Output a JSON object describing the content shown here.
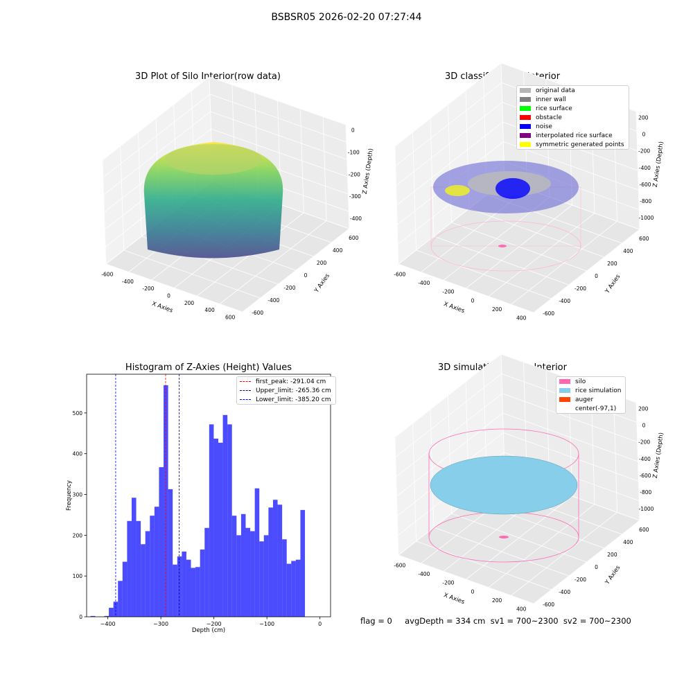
{
  "figure": {
    "title": "BSBSR05 2026-02-20 07:27:44",
    "footer": "flag = 0     avgDepth = 334 cm  sv1 = 700~2300  sv2 = 700~2300"
  },
  "panel1": {
    "title": "3D Plot of Silo Interior(row data)",
    "xlabel": "X Axies",
    "ylabel": "Y Axies",
    "zlabel": "Z Axies (Depth)",
    "xticks": [
      "-600",
      "-400",
      "-200",
      "0",
      "200",
      "400",
      "600"
    ],
    "yticks": [
      "-600",
      "-400",
      "-200",
      "0",
      "200",
      "400",
      "600"
    ],
    "zticks": [
      "0",
      "-100",
      "-200",
      "-300",
      "-400"
    ]
  },
  "panel2": {
    "title": "3D classify of Silo Interior",
    "xlabel": "X Axies",
    "ylabel": "Y Axies",
    "zlabel": "Z Axies (Depth)",
    "xticks": [
      "-600",
      "-400",
      "-200",
      "0",
      "200",
      "400"
    ],
    "yticks": [
      "-600",
      "-400",
      "-200",
      "0",
      "200",
      "400",
      "600"
    ],
    "zticks": [
      "200",
      "0",
      "-200",
      "-400",
      "-600",
      "-800",
      "-1000"
    ],
    "legend": [
      {
        "label": "original data",
        "color": "#b5b5b5"
      },
      {
        "label": "inner wall",
        "color": "#808080"
      },
      {
        "label": "rice surface",
        "color": "#00ff00"
      },
      {
        "label": "obstacle",
        "color": "#ff0000"
      },
      {
        "label": "noise",
        "color": "#0000ff"
      },
      {
        "label": "interpolated rice surface",
        "color": "#800080"
      },
      {
        "label": "symmetric generated points",
        "color": "#ffff00"
      }
    ]
  },
  "panel4": {
    "title": "3D simulation of Silo Interior",
    "xlabel": "X Axies",
    "ylabel": "Y Axies",
    "zlabel": "Z Axies (Depth)",
    "xticks": [
      "-600",
      "-400",
      "-200",
      "0",
      "200",
      "400"
    ],
    "yticks": [
      "-600",
      "-400",
      "-200",
      "0",
      "200",
      "400",
      "600"
    ],
    "zticks": [
      "200",
      "0",
      "-200",
      "-400",
      "-600",
      "-800",
      "-1000"
    ],
    "legend": [
      {
        "label": "silo",
        "color": "#ff69b4"
      },
      {
        "label": "rice simulation",
        "color": "#87ceeb"
      },
      {
        "label": "auger",
        "color": "#ff4500"
      },
      {
        "label": "center(-97,1)",
        "color": ""
      }
    ]
  },
  "chart_data": [
    {
      "type": "bar",
      "title": "Histogram of Z-Axies (Height) Values",
      "xlabel": "Depth (cm)",
      "ylabel": "Frequency",
      "xlim": [
        -440,
        20
      ],
      "ylim": [
        0,
        595
      ],
      "xticks": [
        -400,
        -300,
        -200,
        -100,
        0
      ],
      "yticks": [
        0,
        100,
        200,
        300,
        400,
        500
      ],
      "bin_start": -432.5,
      "bin_width": 8.6,
      "values": [
        2,
        0,
        0,
        2,
        22,
        37,
        88,
        135,
        235,
        292,
        235,
        178,
        210,
        248,
        270,
        367,
        568,
        313,
        128,
        148,
        160,
        140,
        120,
        122,
        165,
        218,
        472,
        437,
        427,
        495,
        472,
        248,
        200,
        252,
        218,
        210,
        315,
        185,
        200,
        268,
        287,
        275,
        190,
        130,
        137,
        140,
        262
      ],
      "bar_color": "#0000ff",
      "bar_alpha": 0.7,
      "vlines": [
        {
          "label": "first_peak: -291.04 cm",
          "x": -291.04,
          "color": "#ff0000"
        },
        {
          "label": "Upper_limit: -265.36 cm",
          "x": -265.36,
          "color": "#00008b"
        },
        {
          "label": "Lower_limit: -385.20 cm",
          "x": -385.2,
          "color": "#0000ff"
        }
      ],
      "legend_position": "top-right"
    }
  ]
}
